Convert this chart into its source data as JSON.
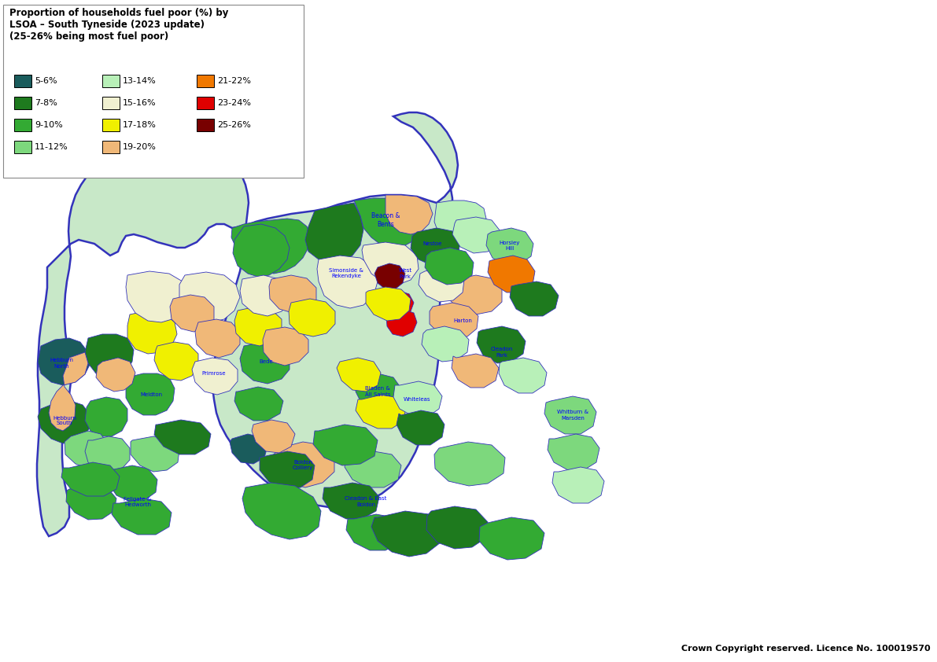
{
  "title_lines": [
    "Proportion of households fuel poor (%) by",
    "LSOA – South Tyneside (2023 update)",
    "(25-26% being most fuel poor)"
  ],
  "copyright_text": "Crown Copyright reserved. Licence No. 100019570",
  "colors": {
    "5-6": "#1a5c5c",
    "7-8": "#1e7a1e",
    "9-10": "#33aa33",
    "11-12": "#7dd87d",
    "13-14": "#b8f0b8",
    "15-16": "#f0f0d0",
    "17-18": "#f0f000",
    "19-20": "#f0b878",
    "21-22": "#f07800",
    "23-24": "#e00000",
    "25-26": "#780000"
  },
  "legend": [
    {
      "label": "5-6%",
      "key": "5-6"
    },
    {
      "label": "7-8%",
      "key": "7-8"
    },
    {
      "label": "9-10%",
      "key": "9-10"
    },
    {
      "label": "11-12%",
      "key": "11-12"
    },
    {
      "label": "13-14%",
      "key": "13-14"
    },
    {
      "label": "15-16%",
      "key": "15-16"
    },
    {
      "label": "17-18%",
      "key": "17-18"
    },
    {
      "label": "19-20%",
      "key": "19-20"
    },
    {
      "label": "21-22%",
      "key": "21-22"
    },
    {
      "label": "23-24%",
      "key": "23-24"
    },
    {
      "label": "25-26%",
      "key": "25-26"
    }
  ],
  "border_color": "#3333bb",
  "fig_width": 11.91,
  "fig_height": 8.42,
  "dpi": 100
}
